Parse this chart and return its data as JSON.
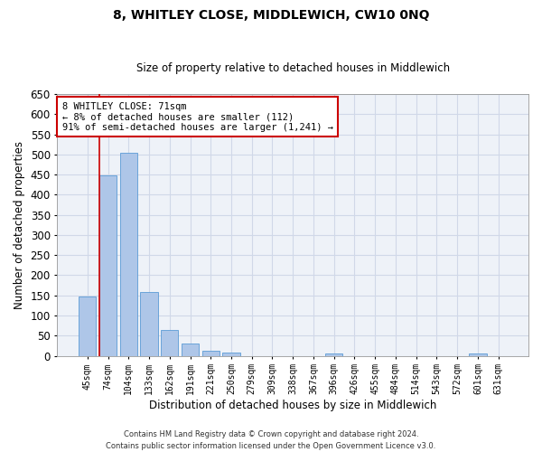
{
  "title": "8, WHITLEY CLOSE, MIDDLEWICH, CW10 0NQ",
  "subtitle": "Size of property relative to detached houses in Middlewich",
  "xlabel": "Distribution of detached houses by size in Middlewich",
  "ylabel": "Number of detached properties",
  "categories": [
    "45sqm",
    "74sqm",
    "104sqm",
    "133sqm",
    "162sqm",
    "191sqm",
    "221sqm",
    "250sqm",
    "279sqm",
    "309sqm",
    "338sqm",
    "367sqm",
    "396sqm",
    "426sqm",
    "455sqm",
    "484sqm",
    "514sqm",
    "543sqm",
    "572sqm",
    "601sqm",
    "631sqm"
  ],
  "values": [
    147,
    447,
    505,
    158,
    65,
    30,
    13,
    9,
    0,
    0,
    0,
    0,
    6,
    0,
    0,
    0,
    0,
    0,
    0,
    5,
    0
  ],
  "bar_color": "#aec6e8",
  "bar_edge_color": "#5b9bd5",
  "grid_color": "#d0d8e8",
  "background_color": "#eef2f8",
  "annotation_box_color": "#ffffff",
  "annotation_border_color": "#cc0000",
  "vline_color": "#cc0000",
  "vline_x_index": 1,
  "annotation_text_line1": "8 WHITLEY CLOSE: 71sqm",
  "annotation_text_line2": "← 8% of detached houses are smaller (112)",
  "annotation_text_line3": "91% of semi-detached houses are larger (1,241) →",
  "ylim": [
    0,
    650
  ],
  "yticks": [
    0,
    50,
    100,
    150,
    200,
    250,
    300,
    350,
    400,
    450,
    500,
    550,
    600,
    650
  ],
  "footer_line1": "Contains HM Land Registry data © Crown copyright and database right 2024.",
  "footer_line2": "Contains public sector information licensed under the Open Government Licence v3.0."
}
